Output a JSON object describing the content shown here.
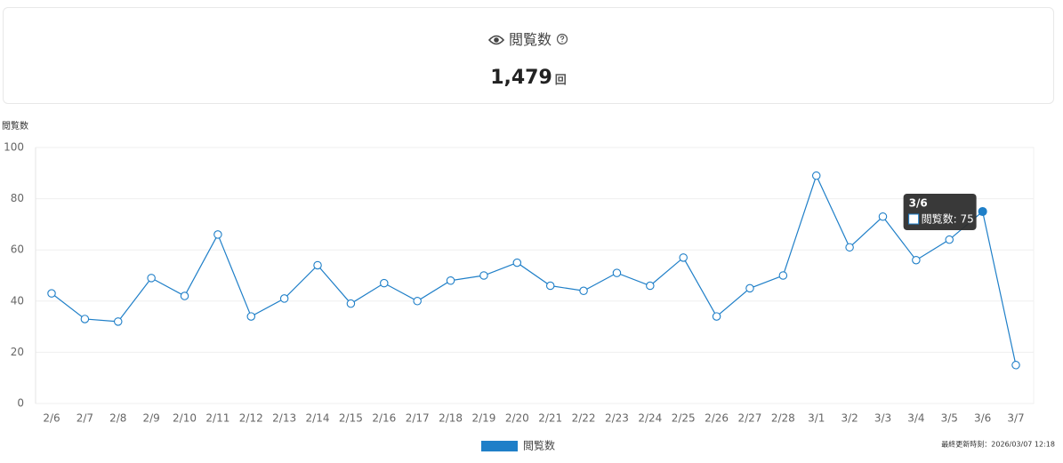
{
  "card": {
    "title": "閲覧数",
    "value": "1,479",
    "unit": "回"
  },
  "chart_data": {
    "type": "line",
    "y_label": "閲覧数",
    "categories": [
      "2/6",
      "2/7",
      "2/8",
      "2/9",
      "2/10",
      "2/11",
      "2/12",
      "2/13",
      "2/14",
      "2/15",
      "2/16",
      "2/17",
      "2/18",
      "2/19",
      "2/20",
      "2/21",
      "2/22",
      "2/23",
      "2/24",
      "2/25",
      "2/26",
      "2/27",
      "2/28",
      "3/1",
      "3/2",
      "3/3",
      "3/4",
      "3/5",
      "3/6",
      "3/7"
    ],
    "series": [
      {
        "name": "閲覧数",
        "color": "#1f7fc8",
        "values": [
          43,
          33,
          32,
          49,
          42,
          66,
          34,
          41,
          54,
          39,
          47,
          40,
          48,
          50,
          55,
          46,
          44,
          51,
          46,
          57,
          34,
          45,
          50,
          89,
          61,
          73,
          56,
          64,
          75,
          15
        ]
      }
    ],
    "ylim": [
      0,
      100
    ],
    "yticks": [
      0,
      20,
      40,
      60,
      80,
      100
    ],
    "grid": true,
    "legend": "bottom",
    "tooltip": {
      "title": "3/6",
      "text": "閲覧数: 75"
    }
  },
  "updated": "最終更新時刻：2026/03/07 12:18"
}
